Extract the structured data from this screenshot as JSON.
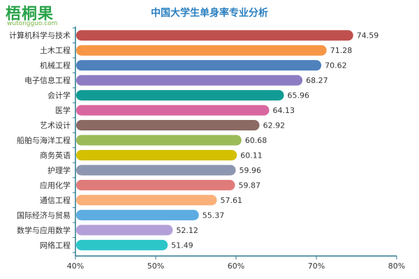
{
  "logo": {
    "text": "梧桐果",
    "subtext": "wutongguo.com"
  },
  "chart_data": {
    "type": "bar",
    "orientation": "horizontal",
    "title": "中国大学生单身率专业分析",
    "categories": [
      "计算机科学与技术",
      "土木工程",
      "机械工程",
      "电子信息工程",
      "会计学",
      "医学",
      "艺术设计",
      "船舶与海洋工程",
      "商务英语",
      "护理学",
      "应用化学",
      "通信工程",
      "国际经济与贸易",
      "数学与应用数学",
      "网络工程"
    ],
    "values": [
      74.59,
      71.28,
      70.62,
      68.27,
      65.96,
      64.13,
      62.92,
      60.68,
      60.11,
      59.96,
      59.87,
      57.61,
      55.37,
      52.12,
      51.49
    ],
    "value_labels": [
      "74.59",
      "71.28",
      "70.62",
      "68.27",
      "65.96",
      "64.13",
      "62.92",
      "60.68",
      "60.11",
      "59.96",
      "59.87",
      "57.61",
      "55.37",
      "52.12",
      "51.49"
    ],
    "colors": [
      "#c0504d",
      "#f79646",
      "#4f81bd",
      "#8e7cc3",
      "#109c94",
      "#d9679f",
      "#8b6a64",
      "#9bbb59",
      "#d4c000",
      "#8c96b0",
      "#e07b7b",
      "#fbb07a",
      "#5dade2",
      "#b4a0d8",
      "#2cc6c9"
    ],
    "xlim": [
      40,
      80
    ],
    "x_ticks": [
      40,
      50,
      60,
      70,
      80
    ],
    "x_tick_labels": [
      "40%",
      "50%",
      "60%",
      "70%",
      "80%"
    ],
    "grid": false,
    "legend": "none"
  }
}
